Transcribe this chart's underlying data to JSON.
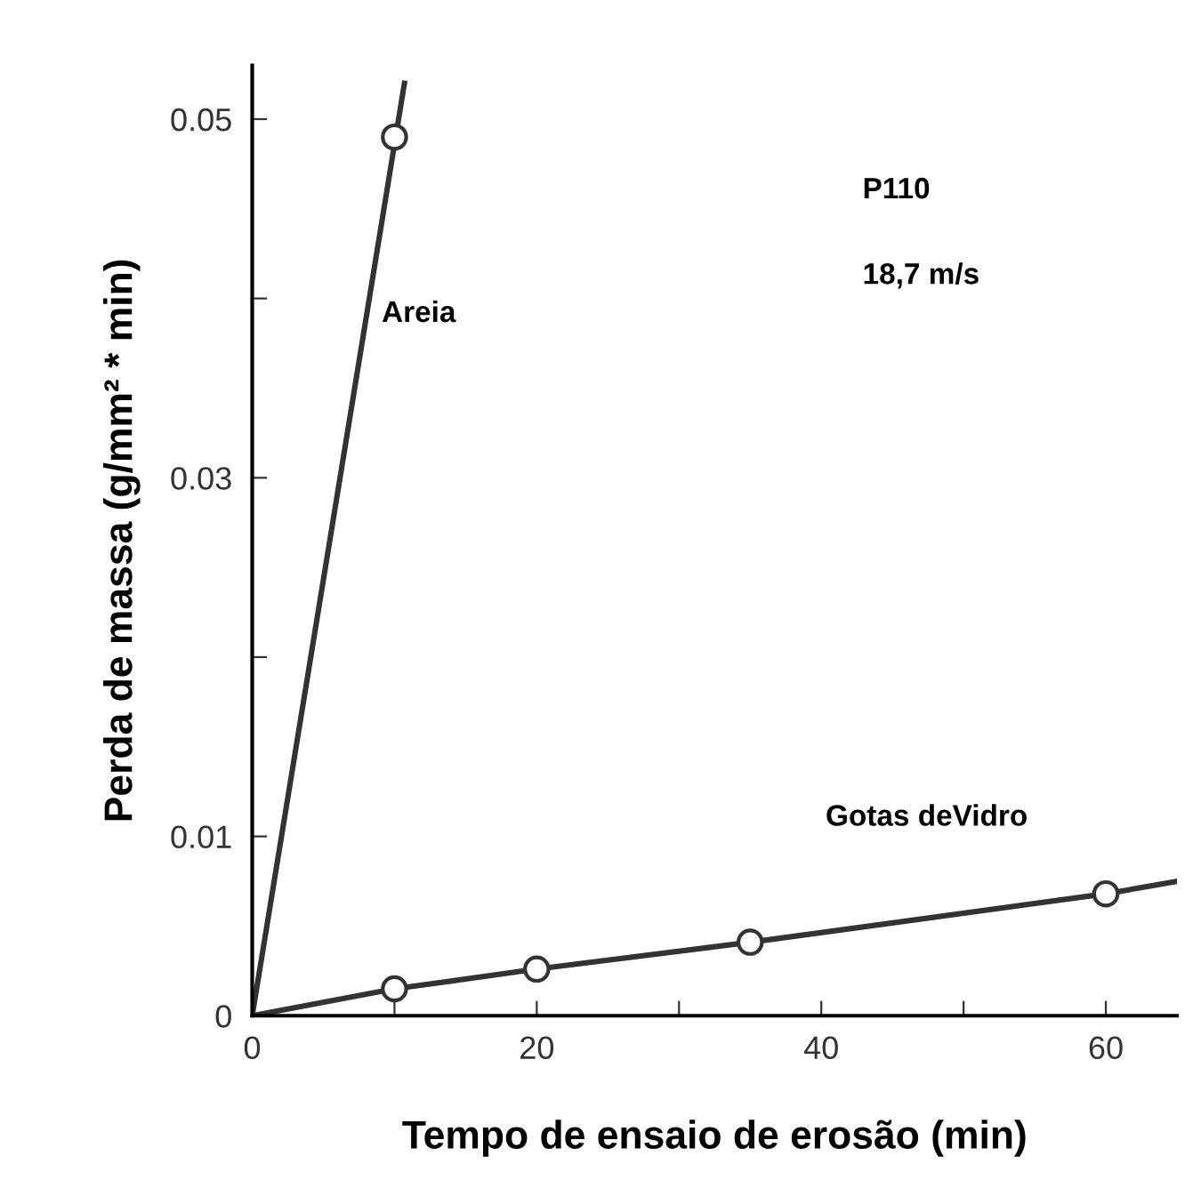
{
  "chart_data": {
    "type": "line",
    "xlabel": "Tempo de ensaio de erosão (min)",
    "ylabel": "Perda de massa (g/mm² * min)",
    "xlim": [
      0,
      65
    ],
    "ylim": [
      0,
      0.053
    ],
    "xticks": [
      0,
      {
        "value": 10,
        "label": null
      },
      20,
      {
        "value": 30,
        "label": null
      },
      40,
      {
        "value": 50,
        "label": null
      },
      60
    ],
    "yticks": [
      0,
      0.01,
      {
        "value": 0.02,
        "label": null
      },
      0.03,
      {
        "value": 0.04,
        "label": null
      },
      0.05
    ],
    "grid": false,
    "legend": false,
    "series": [
      {
        "name": "Areia",
        "color": "#333333",
        "x": [
          0,
          10.7
        ],
        "values": [
          0,
          0.052
        ]
      },
      {
        "type": "scatter",
        "color": "#333333",
        "marker": "circle",
        "x": [
          10
        ],
        "values": [
          0.049
        ]
      },
      {
        "name": "Gotas deVidro",
        "color": "#333333",
        "x": [
          0,
          10,
          20,
          35,
          60,
          65
        ],
        "values": [
          0,
          0.0015,
          0.0026,
          0.0041,
          0.0068,
          0.0075
        ]
      },
      {
        "type": "scatter",
        "color": "#333333",
        "marker": "circle",
        "x": [
          10,
          20,
          35,
          60
        ],
        "values": [
          0.0015,
          0.0026,
          0.0041,
          0.0068
        ]
      }
    ],
    "annotations": [
      "P110",
      "18,7 m/s"
    ]
  }
}
